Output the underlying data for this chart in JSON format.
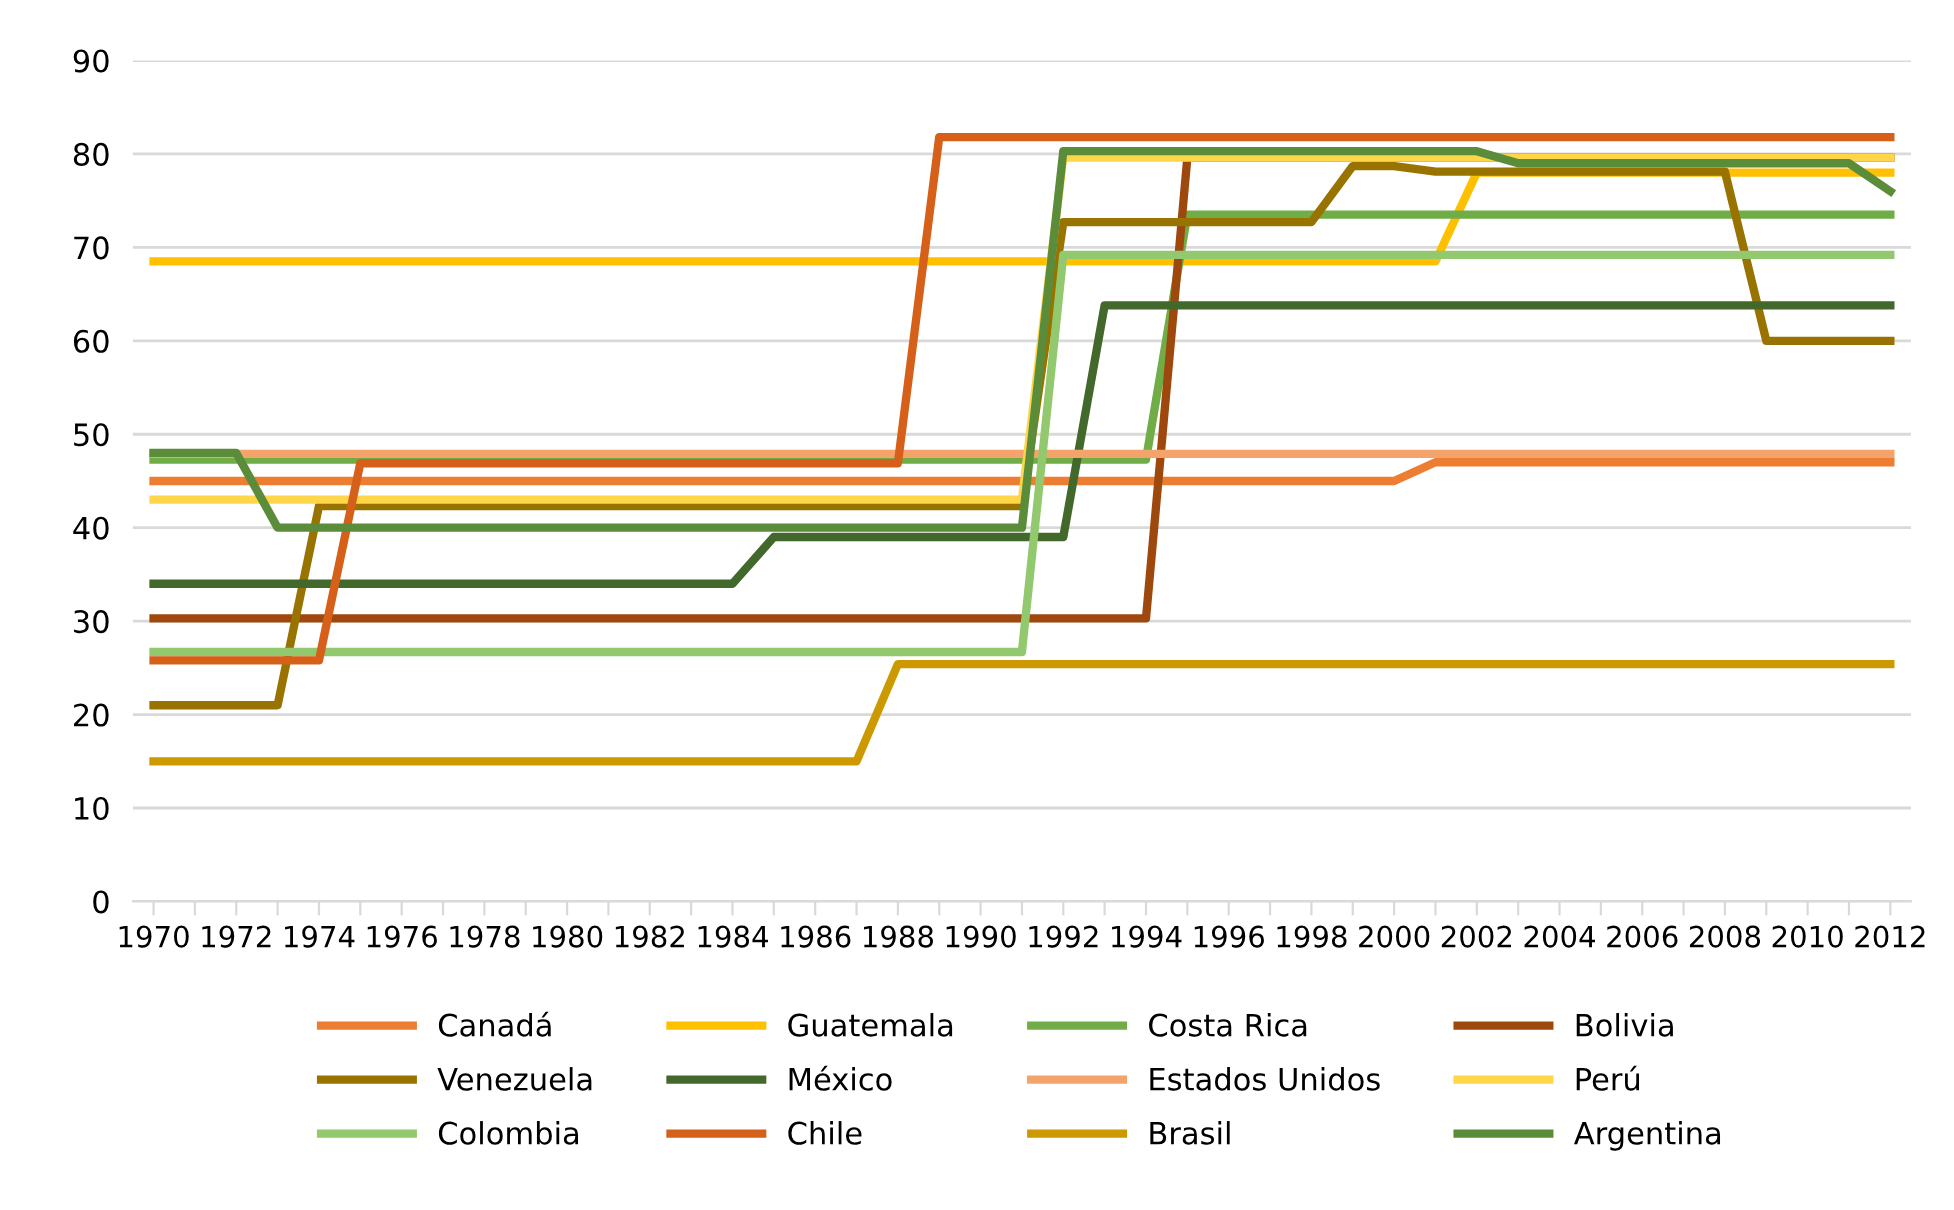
{
  "chart_data": {
    "type": "line",
    "categories": [
      "1970",
      null,
      "1972",
      null,
      "1974",
      null,
      "1976",
      null,
      "1978",
      null,
      "1980",
      null,
      "1982",
      null,
      "1984",
      null,
      "1986",
      null,
      "1988",
      null,
      "1990",
      null,
      "1992",
      null,
      "1994",
      null,
      "1996",
      null,
      "1998",
      null,
      "2000",
      null,
      "2002",
      null,
      "2004",
      null,
      "2006",
      null,
      "2008",
      null,
      "2010",
      null,
      "2012"
    ],
    "ylim": [
      0,
      90
    ],
    "yticks": [
      0,
      10,
      20,
      30,
      40,
      50,
      60,
      70,
      80,
      90
    ],
    "grid": "y",
    "legend": "bottom",
    "marker": "none",
    "line_style": "solid",
    "series": [
      {
        "name": "Canadá",
        "color": "#ed7d31",
        "values": [
          45,
          45,
          45,
          45,
          45,
          45,
          45,
          45,
          45,
          45,
          45,
          45,
          45,
          45,
          45,
          45,
          45,
          45,
          45,
          45,
          45,
          45,
          45,
          45,
          45,
          45,
          45,
          45,
          45,
          45,
          45,
          47,
          47,
          47,
          47,
          47,
          47,
          47,
          47,
          47,
          47,
          47,
          47
        ]
      },
      {
        "name": "Guatemala",
        "color": "#ffc000",
        "values": [
          68.5,
          68.5,
          68.5,
          68.5,
          68.5,
          68.5,
          68.5,
          68.5,
          68.5,
          68.5,
          68.5,
          68.5,
          68.5,
          68.5,
          68.5,
          68.5,
          68.5,
          68.5,
          68.5,
          68.5,
          68.5,
          68.5,
          68.5,
          68.5,
          68.5,
          68.5,
          68.5,
          68.5,
          68.5,
          68.5,
          68.5,
          68.5,
          78,
          78,
          78,
          78,
          78,
          78,
          78,
          78,
          78,
          78,
          78
        ]
      },
      {
        "name": "Costa Rica",
        "color": "#70ad47",
        "values": [
          47.3,
          47.3,
          47.3,
          47.3,
          47.3,
          47.3,
          47.3,
          47.3,
          47.3,
          47.3,
          47.3,
          47.3,
          47.3,
          47.3,
          47.3,
          47.3,
          47.3,
          47.3,
          47.3,
          47.3,
          47.3,
          47.3,
          47.3,
          47.3,
          47.3,
          73.5,
          73.5,
          73.5,
          73.5,
          73.5,
          73.5,
          73.5,
          73.5,
          73.5,
          73.5,
          73.5,
          73.5,
          73.5,
          73.5,
          73.5,
          73.5,
          73.5,
          73.5
        ]
      },
      {
        "name": "Bolivia",
        "color": "#9e480e",
        "values": [
          30.3,
          30.3,
          30.3,
          30.3,
          30.3,
          30.3,
          30.3,
          30.3,
          30.3,
          30.3,
          30.3,
          30.3,
          30.3,
          30.3,
          30.3,
          30.3,
          30.3,
          30.3,
          30.3,
          30.3,
          30.3,
          30.3,
          30.3,
          30.3,
          30.3,
          79.6,
          79.6,
          79.6,
          79.6,
          79.6,
          79.6,
          79.6,
          79.6,
          79.6,
          79.6,
          79.6,
          79.6,
          79.6,
          79.6,
          79.6,
          79.6,
          79.6,
          79.6
        ]
      },
      {
        "name": "Venezuela",
        "color": "#997300",
        "values": [
          21,
          21,
          21,
          21,
          42.3,
          42.3,
          42.3,
          42.3,
          42.3,
          42.3,
          42.3,
          42.3,
          42.3,
          42.3,
          42.3,
          42.3,
          42.3,
          42.3,
          42.3,
          42.3,
          42.3,
          42.3,
          72.7,
          72.7,
          72.7,
          72.7,
          72.7,
          72.7,
          72.7,
          78.7,
          78.7,
          78.1,
          78.1,
          78.1,
          78.1,
          78.1,
          78.1,
          78.1,
          78.1,
          60,
          60,
          60,
          60
        ]
      },
      {
        "name": "México",
        "color": "#43682b",
        "values": [
          34,
          34,
          34,
          34,
          34,
          34,
          34,
          34,
          34,
          34,
          34,
          34,
          34,
          34,
          34,
          39,
          39,
          39,
          39,
          39,
          39,
          39,
          39,
          63.8,
          63.8,
          63.8,
          63.8,
          63.8,
          63.8,
          63.8,
          63.8,
          63.8,
          63.8,
          63.8,
          63.8,
          63.8,
          63.8,
          63.8,
          63.8,
          63.8,
          63.8,
          63.8,
          63.8
        ]
      },
      {
        "name": "Estados Unidos",
        "color": "#f4a36a",
        "values": [
          47.9,
          47.9,
          47.9,
          47.9,
          47.9,
          47.9,
          47.9,
          47.9,
          47.9,
          47.9,
          47.9,
          47.9,
          47.9,
          47.9,
          47.9,
          47.9,
          47.9,
          47.9,
          47.9,
          47.9,
          47.9,
          47.9,
          47.9,
          47.9,
          47.9,
          47.9,
          47.9,
          47.9,
          47.9,
          47.9,
          47.9,
          47.9,
          47.9,
          47.9,
          47.9,
          47.9,
          47.9,
          47.9,
          47.9,
          47.9,
          47.9,
          47.9,
          47.9
        ]
      },
      {
        "name": "Perú",
        "color": "#ffd54a",
        "values": [
          43,
          43,
          43,
          43,
          43,
          43,
          43,
          43,
          43,
          43,
          43,
          43,
          43,
          43,
          43,
          43,
          43,
          43,
          43,
          43,
          43,
          43,
          79.6,
          79.6,
          79.6,
          79.6,
          79.6,
          79.6,
          79.6,
          79.6,
          79.6,
          79.6,
          79.6,
          79.6,
          79.6,
          79.6,
          79.6,
          79.6,
          79.6,
          79.6,
          79.6,
          79.6,
          79.6
        ]
      },
      {
        "name": "Colombia",
        "color": "#92c86e",
        "values": [
          26.7,
          26.7,
          26.7,
          26.7,
          26.7,
          26.7,
          26.7,
          26.7,
          26.7,
          26.7,
          26.7,
          26.7,
          26.7,
          26.7,
          26.7,
          26.7,
          26.7,
          26.7,
          26.7,
          26.7,
          26.7,
          26.7,
          69.2,
          69.2,
          69.2,
          69.2,
          69.2,
          69.2,
          69.2,
          69.2,
          69.2,
          69.2,
          69.2,
          69.2,
          69.2,
          69.2,
          69.2,
          69.2,
          69.2,
          69.2,
          69.2,
          69.2,
          69.2
        ]
      },
      {
        "name": "Chile",
        "color": "#d6601a",
        "values": [
          25.8,
          25.8,
          25.8,
          25.8,
          25.8,
          46.9,
          46.9,
          46.9,
          46.9,
          46.9,
          46.9,
          46.9,
          46.9,
          46.9,
          46.9,
          46.9,
          46.9,
          46.9,
          46.9,
          81.8,
          81.8,
          81.8,
          81.8,
          81.8,
          81.8,
          81.8,
          81.8,
          81.8,
          81.8,
          81.8,
          81.8,
          81.8,
          81.8,
          81.8,
          81.8,
          81.8,
          81.8,
          81.8,
          81.8,
          81.8,
          81.8,
          81.8,
          81.8
        ]
      },
      {
        "name": "Brasil",
        "color": "#cc9a00",
        "values": [
          15,
          15,
          15,
          15,
          15,
          15,
          15,
          15,
          15,
          15,
          15,
          15,
          15,
          15,
          15,
          15,
          15,
          15,
          25.4,
          25.4,
          25.4,
          25.4,
          25.4,
          25.4,
          25.4,
          25.4,
          25.4,
          25.4,
          25.4,
          25.4,
          25.4,
          25.4,
          25.4,
          25.4,
          25.4,
          25.4,
          25.4,
          25.4,
          25.4,
          25.4,
          25.4,
          25.4,
          25.4
        ]
      },
      {
        "name": "Argentina",
        "color": "#5b8c3a",
        "values": [
          48,
          48,
          48,
          40,
          40,
          40,
          40,
          40,
          40,
          40,
          40,
          40,
          40,
          40,
          40,
          40,
          40,
          40,
          40,
          40,
          40,
          40,
          80.3,
          80.3,
          80.3,
          80.3,
          80.3,
          80.3,
          80.3,
          80.3,
          80.3,
          80.3,
          80.3,
          79,
          79,
          79,
          79,
          79,
          79,
          79,
          79,
          79,
          76
        ]
      }
    ]
  }
}
